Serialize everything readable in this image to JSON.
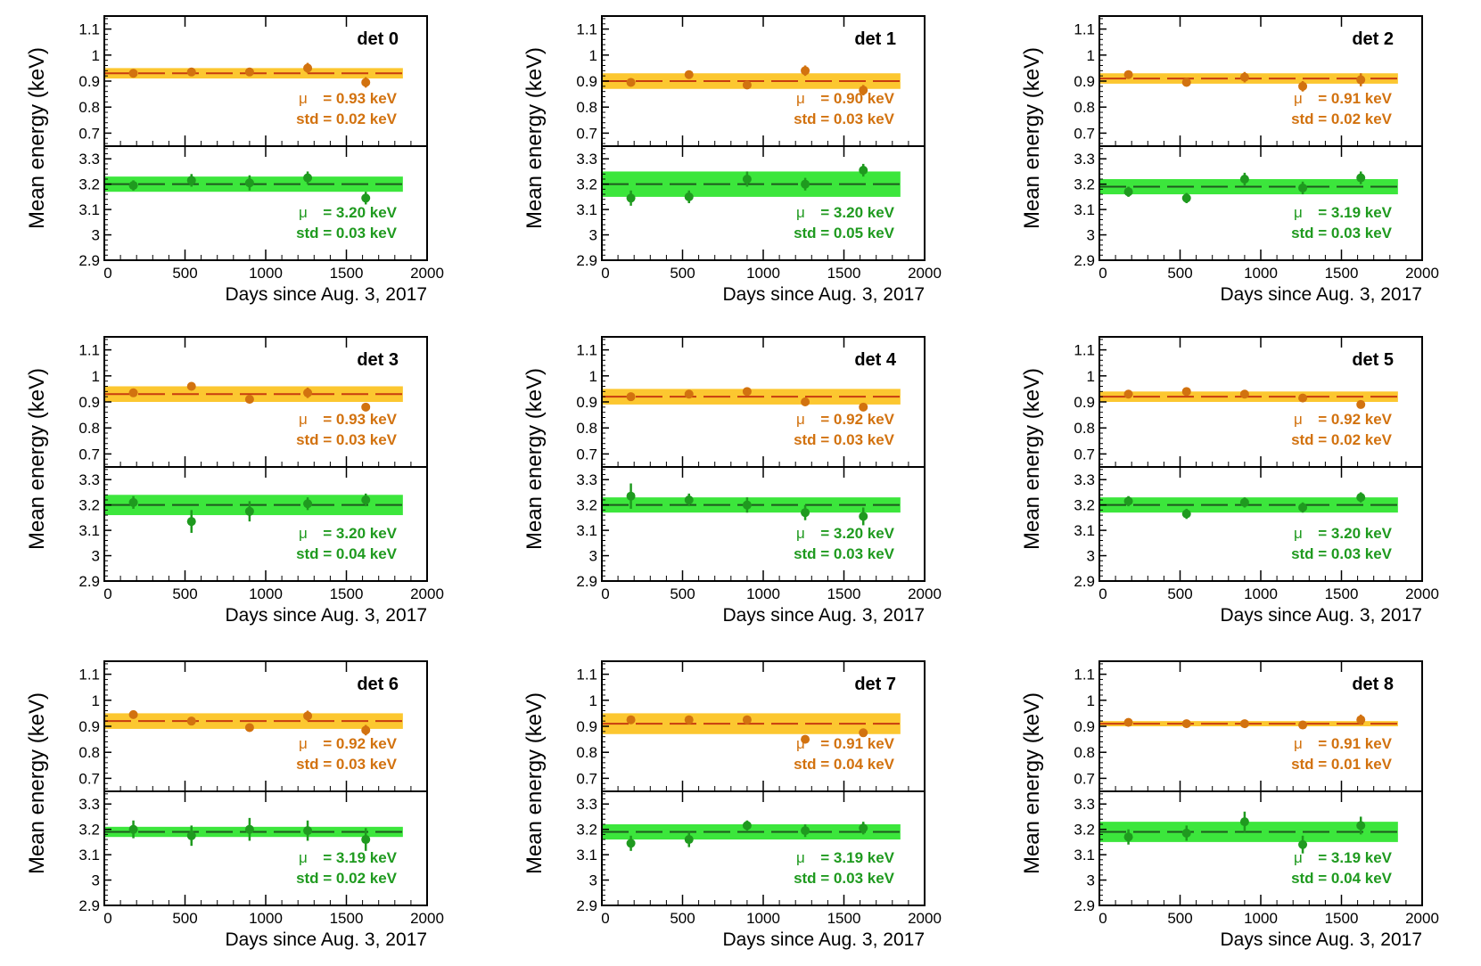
{
  "colors": {
    "low_marker": "#d2720f",
    "low_band": "#fcc730",
    "low_line": "#c83c0f",
    "high_marker": "#1f9a1f",
    "high_band": "#3ce63c",
    "high_line": "#1e5a1e",
    "low_text": "#d2720f",
    "high_text": "#1f9a1f"
  },
  "axes": {
    "ylabel": "Mean energy (keV)",
    "xlabel": "Days since Aug. 3, 2017",
    "xlim": [
      0,
      2000
    ],
    "xticks": [
      "0",
      "500",
      "1000",
      "1500",
      "2000"
    ],
    "low_ylim": [
      0.65,
      1.15
    ],
    "low_yticks": [
      "0.7",
      "0.8",
      "0.9",
      "1",
      "1.1"
    ],
    "high_ylim": [
      2.9,
      3.35
    ],
    "high_yticks": [
      "2.9",
      "3",
      "3.1",
      "3.2",
      "3.3"
    ]
  },
  "chart_data": [
    {
      "type": "scatter",
      "title": "det 0",
      "x": [
        180,
        540,
        900,
        1260,
        1620
      ],
      "low": {
        "values": [
          0.93,
          0.935,
          0.935,
          0.95,
          0.895
        ],
        "errors": [
          0.01,
          0.01,
          0.015,
          0.02,
          0.02
        ],
        "mu": 0.93,
        "std": 0.02,
        "mu_label": "= 0.93 keV",
        "std_label": "std = 0.02 keV"
      },
      "high": {
        "values": [
          3.195,
          3.215,
          3.205,
          3.225,
          3.145
        ],
        "errors": [
          0.02,
          0.025,
          0.03,
          0.025,
          0.025
        ],
        "mu": 3.2,
        "std": 0.03,
        "mu_label": "= 3.20 keV",
        "std_label": "std = 0.03 keV"
      }
    },
    {
      "type": "scatter",
      "title": "det 1",
      "x": [
        180,
        540,
        900,
        1260,
        1620
      ],
      "low": {
        "values": [
          0.895,
          0.925,
          0.885,
          0.94,
          0.865
        ],
        "errors": [
          0.01,
          0.01,
          0.01,
          0.02,
          0.02
        ],
        "mu": 0.9,
        "std": 0.03,
        "mu_label": "= 0.90 keV",
        "std_label": "std = 0.03 keV"
      },
      "high": {
        "values": [
          3.145,
          3.15,
          3.22,
          3.2,
          3.255
        ],
        "errors": [
          0.03,
          0.025,
          0.03,
          0.025,
          0.025
        ],
        "mu": 3.2,
        "std": 0.05,
        "mu_label": "= 3.20 keV",
        "std_label": "std = 0.05 keV"
      }
    },
    {
      "type": "scatter",
      "title": "det 2",
      "x": [
        180,
        540,
        900,
        1260,
        1620
      ],
      "low": {
        "values": [
          0.925,
          0.895,
          0.915,
          0.88,
          0.905
        ],
        "errors": [
          0.015,
          0.015,
          0.02,
          0.02,
          0.025
        ],
        "mu": 0.91,
        "std": 0.02,
        "mu_label": "= 0.91 keV",
        "std_label": "std = 0.02 keV"
      },
      "high": {
        "values": [
          3.17,
          3.145,
          3.22,
          3.185,
          3.225
        ],
        "errors": [
          0.02,
          0.02,
          0.025,
          0.025,
          0.025
        ],
        "mu": 3.19,
        "std": 0.03,
        "mu_label": "= 3.19 keV",
        "std_label": "std = 0.03 keV"
      }
    },
    {
      "type": "scatter",
      "title": "det 3",
      "x": [
        180,
        540,
        900,
        1260,
        1620
      ],
      "low": {
        "values": [
          0.935,
          0.96,
          0.91,
          0.935,
          0.88
        ],
        "errors": [
          0.01,
          0.01,
          0.01,
          0.02,
          0.015
        ],
        "mu": 0.93,
        "std": 0.03,
        "mu_label": "= 0.93 keV",
        "std_label": "std = 0.03 keV"
      },
      "high": {
        "values": [
          3.21,
          3.135,
          3.175,
          3.205,
          3.22
        ],
        "errors": [
          0.025,
          0.045,
          0.04,
          0.025,
          0.025
        ],
        "mu": 3.2,
        "std": 0.04,
        "mu_label": "= 3.20 keV",
        "std_label": "std = 0.04 keV"
      }
    },
    {
      "type": "scatter",
      "title": "det 4",
      "x": [
        180,
        540,
        900,
        1260,
        1620
      ],
      "low": {
        "values": [
          0.92,
          0.93,
          0.94,
          0.9,
          0.88
        ],
        "errors": [
          0.01,
          0.01,
          0.01,
          0.01,
          0.015
        ],
        "mu": 0.92,
        "std": 0.03,
        "mu_label": "= 0.92 keV",
        "std_label": "std = 0.03 keV"
      },
      "high": {
        "values": [
          3.235,
          3.22,
          3.2,
          3.17,
          3.155
        ],
        "errors": [
          0.05,
          0.025,
          0.03,
          0.03,
          0.035
        ],
        "mu": 3.2,
        "std": 0.03,
        "mu_label": "= 3.20 keV",
        "std_label": "std = 0.03 keV"
      }
    },
    {
      "type": "scatter",
      "title": "det 5",
      "x": [
        180,
        540,
        900,
        1260,
        1620
      ],
      "low": {
        "values": [
          0.93,
          0.94,
          0.93,
          0.915,
          0.89
        ],
        "errors": [
          0.01,
          0.01,
          0.01,
          0.01,
          0.01
        ],
        "mu": 0.92,
        "std": 0.02,
        "mu_label": "= 0.92 keV",
        "std_label": "std = 0.02 keV"
      },
      "high": {
        "values": [
          3.215,
          3.165,
          3.21,
          3.19,
          3.23
        ],
        "errors": [
          0.02,
          0.02,
          0.02,
          0.02,
          0.02
        ],
        "mu": 3.2,
        "std": 0.03,
        "mu_label": "= 3.20 keV",
        "std_label": "std = 0.03 keV"
      }
    },
    {
      "type": "scatter",
      "title": "det 6",
      "x": [
        180,
        540,
        900,
        1260,
        1620
      ],
      "low": {
        "values": [
          0.945,
          0.92,
          0.895,
          0.94,
          0.885
        ],
        "errors": [
          0.01,
          0.01,
          0.015,
          0.02,
          0.02
        ],
        "mu": 0.92,
        "std": 0.03,
        "mu_label": "= 0.92 keV",
        "std_label": "std = 0.03 keV"
      },
      "high": {
        "values": [
          3.2,
          3.175,
          3.2,
          3.195,
          3.16
        ],
        "errors": [
          0.035,
          0.04,
          0.045,
          0.04,
          0.045
        ],
        "mu": 3.19,
        "std": 0.02,
        "mu_label": "= 3.19 keV",
        "std_label": "std = 0.02 keV"
      }
    },
    {
      "type": "scatter",
      "title": "det 7",
      "x": [
        180,
        540,
        900,
        1260,
        1620
      ],
      "low": {
        "values": [
          0.925,
          0.925,
          0.925,
          0.85,
          0.875
        ],
        "errors": [
          0.01,
          0.01,
          0.01,
          0.015,
          0.015
        ],
        "mu": 0.91,
        "std": 0.04,
        "mu_label": "= 0.91 keV",
        "std_label": "std = 0.04 keV"
      },
      "high": {
        "values": [
          3.145,
          3.16,
          3.215,
          3.195,
          3.205
        ],
        "errors": [
          0.03,
          0.03,
          0.02,
          0.025,
          0.025
        ],
        "mu": 3.19,
        "std": 0.03,
        "mu_label": "= 3.19 keV",
        "std_label": "std = 0.03 keV"
      }
    },
    {
      "type": "scatter",
      "title": "det 8",
      "x": [
        180,
        540,
        900,
        1260,
        1620
      ],
      "low": {
        "values": [
          0.915,
          0.91,
          0.91,
          0.905,
          0.925
        ],
        "errors": [
          0.01,
          0.01,
          0.01,
          0.01,
          0.02
        ],
        "mu": 0.91,
        "std": 0.01,
        "mu_label": "= 0.91 keV",
        "std_label": "std = 0.01 keV"
      },
      "high": {
        "values": [
          3.17,
          3.185,
          3.23,
          3.14,
          3.215
        ],
        "errors": [
          0.03,
          0.03,
          0.04,
          0.035,
          0.035
        ],
        "mu": 3.19,
        "std": 0.04,
        "mu_label": "= 3.19 keV",
        "std_label": "std = 0.04 keV"
      }
    }
  ]
}
